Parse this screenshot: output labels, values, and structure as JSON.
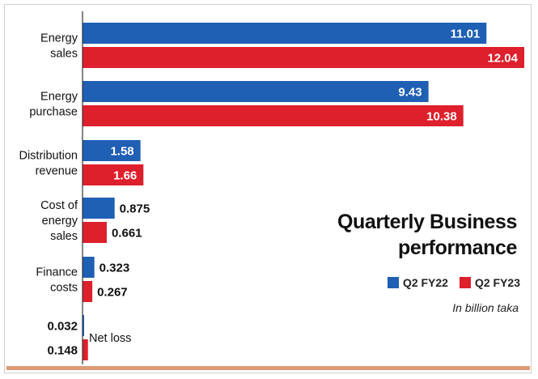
{
  "chart_data": {
    "type": "bar",
    "orientation": "horizontal",
    "title": "Quarterly Business performance",
    "title_lines": [
      "Quarterly Business",
      "performance"
    ],
    "unit_note": "In billion taka",
    "categories": [
      [
        "Energy",
        "sales"
      ],
      [
        "Energy",
        "purchase"
      ],
      [
        "Distribution",
        "revenue"
      ],
      [
        "Cost of",
        "energy",
        "sales"
      ],
      [
        "Finance",
        "costs"
      ],
      [
        "Net loss"
      ]
    ],
    "series": [
      {
        "name": "Q2 FY22",
        "color": "#1f5fb4",
        "values": [
          11.01,
          9.43,
          1.58,
          0.875,
          0.323,
          0.032
        ],
        "labels": [
          "11.01",
          "9.43",
          "1.58",
          "0.875",
          "0.323",
          "0.032"
        ]
      },
      {
        "name": "Q2 FY23",
        "color": "#de1f2c",
        "values": [
          12.04,
          10.38,
          1.66,
          0.661,
          0.267,
          0.148
        ],
        "labels": [
          "12.04",
          "10.38",
          "1.66",
          "0.661",
          "0.267",
          "0.148"
        ]
      }
    ],
    "legend_position": "right",
    "grid": false
  }
}
